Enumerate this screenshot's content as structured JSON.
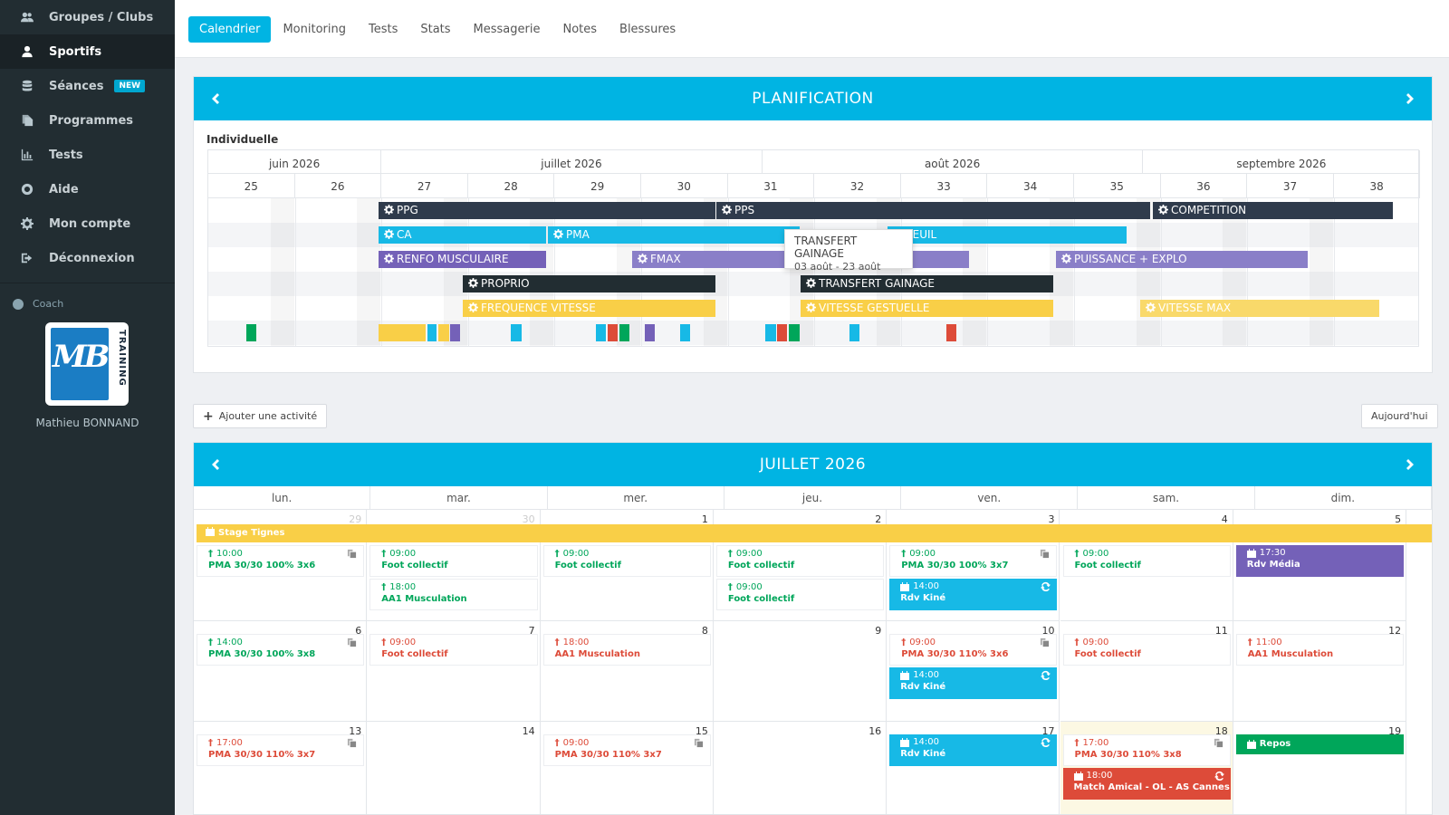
{
  "sidebar": {
    "items": [
      {
        "label": "Groupes / Clubs",
        "icon": "users-icon",
        "active": false
      },
      {
        "label": "Sportifs",
        "icon": "user-icon",
        "active": true
      },
      {
        "label": "Séances",
        "icon": "database-icon",
        "active": false,
        "badge": "NEW"
      },
      {
        "label": "Programmes",
        "icon": "copy-icon",
        "active": false
      },
      {
        "label": "Tests",
        "icon": "bar-chart-icon",
        "active": false
      },
      {
        "label": "Aide",
        "icon": "life-ring-icon",
        "active": false
      },
      {
        "label": "Mon compte",
        "icon": "gear-icon",
        "active": false
      },
      {
        "label": "Déconnexion",
        "icon": "sign-out-icon",
        "active": false
      }
    ],
    "coach_label": "Coach",
    "logo_text": "MB",
    "logo_sub": "TRAINING",
    "coach_name": "Mathieu BONNAND"
  },
  "tabs": [
    "Calendrier",
    "Monitoring",
    "Tests",
    "Stats",
    "Messagerie",
    "Notes",
    "Blessures"
  ],
  "planification": {
    "title": "PLANIFICATION",
    "section": "Individuelle",
    "months": [
      "juin 2026",
      "juillet 2026",
      "août 2026",
      "septembre 2026"
    ],
    "weeks": [
      "25",
      "26",
      "27",
      "28",
      "29",
      "30",
      "31",
      "32",
      "33",
      "34",
      "35",
      "36",
      "37",
      "38"
    ],
    "bars": [
      {
        "label": "PPG",
        "color": "#2f3b4c"
      },
      {
        "label": "PPS",
        "color": "#2f3b4c"
      },
      {
        "label": "COMPETITION",
        "color": "#2f3b4c"
      },
      {
        "label": "CA",
        "color": "#17b9e6"
      },
      {
        "label": "PMA",
        "color": "#17b9e6"
      },
      {
        "label": "SEUIL",
        "color": "#17b9e6"
      },
      {
        "label": "RENFO MUSCULAIRE",
        "color": "#7461b8"
      },
      {
        "label": "FMAX",
        "color": "#8a7fc8"
      },
      {
        "label": "PUISSANCE + EXPLO",
        "color": "#8a7fc8"
      },
      {
        "label": "PROPRIO",
        "color": "#222d32"
      },
      {
        "label": "TRANSFERT GAINAGE",
        "color": "#222d32"
      },
      {
        "label": "FREQUENCE VITESSE",
        "color": "#f9cf47"
      },
      {
        "label": "VITESSE GESTUELLE",
        "color": "#f9cf47"
      },
      {
        "label": "VITESSE MAX",
        "color": "#f9d96a"
      }
    ],
    "tooltip": {
      "title": "TRANSFERT GAINAGE",
      "dates": "03 août - 23 août"
    }
  },
  "buttons": {
    "add_activity": "Ajouter une activité",
    "today": "Aujourd'hui"
  },
  "calendar": {
    "title": "JUILLET 2026",
    "weekdays": [
      "lun.",
      "mar.",
      "mer.",
      "jeu.",
      "ven.",
      "sam.",
      "dim."
    ],
    "week1_days": [
      "29",
      "30",
      "1",
      "2",
      "3",
      "4",
      "5"
    ],
    "week2_days": [
      "6",
      "7",
      "8",
      "9",
      "10",
      "11",
      "12"
    ],
    "week3_days": [
      "13",
      "14",
      "15",
      "16",
      "17",
      "18",
      "19"
    ],
    "stage": "Stage Tignes",
    "events": [
      {
        "time": "10:00",
        "title": "PMA 30/30 100% 3x6"
      },
      {
        "time": "09:00",
        "title": "Foot collectif"
      },
      {
        "time": "18:00",
        "title": "AA1 Musculation"
      },
      {
        "time": "09:00",
        "title": "Foot collectif"
      },
      {
        "time": "09:00",
        "title": "Foot collectif"
      },
      {
        "time": "09:00",
        "title": "Foot collectif"
      },
      {
        "time": "09:00",
        "title": "PMA 30/30 100% 3x7"
      },
      {
        "time": "14:00",
        "title": "Rdv Kiné"
      },
      {
        "time": "09:00",
        "title": "Foot collectif"
      },
      {
        "time": "17:30",
        "title": "Rdv Média"
      },
      {
        "time": "14:00",
        "title": "PMA 30/30 100% 3x8"
      },
      {
        "time": "09:00",
        "title": "Foot collectif"
      },
      {
        "time": "18:00",
        "title": "AA1 Musculation"
      },
      {
        "time": "09:00",
        "title": "PMA 30/30 110% 3x6"
      },
      {
        "time": "14:00",
        "title": "Rdv Kiné"
      },
      {
        "time": "09:00",
        "title": "Foot collectif"
      },
      {
        "time": "11:00",
        "title": "AA1 Musculation"
      },
      {
        "time": "17:00",
        "title": "PMA 30/30 110% 3x7"
      },
      {
        "time": "09:00",
        "title": "PMA 30/30 110% 3x7"
      },
      {
        "time": "14:00",
        "title": "Rdv Kiné"
      },
      {
        "time": "17:00",
        "title": "PMA 30/30 110% 3x8"
      },
      {
        "time": "18:00",
        "title": "Match Amical - OL - AS Cannes"
      },
      {
        "time": "",
        "title": "Repos"
      }
    ]
  },
  "colors": {
    "accent": "#00b4e3",
    "sidebar_bg": "#222d32",
    "done_green": "#00a65a",
    "missed_red": "#dd4b39",
    "match_red": "#dd4b39",
    "media_purple": "#7461b8",
    "repos_green": "#00a65a",
    "stage_yellow": "#f9cf47"
  }
}
